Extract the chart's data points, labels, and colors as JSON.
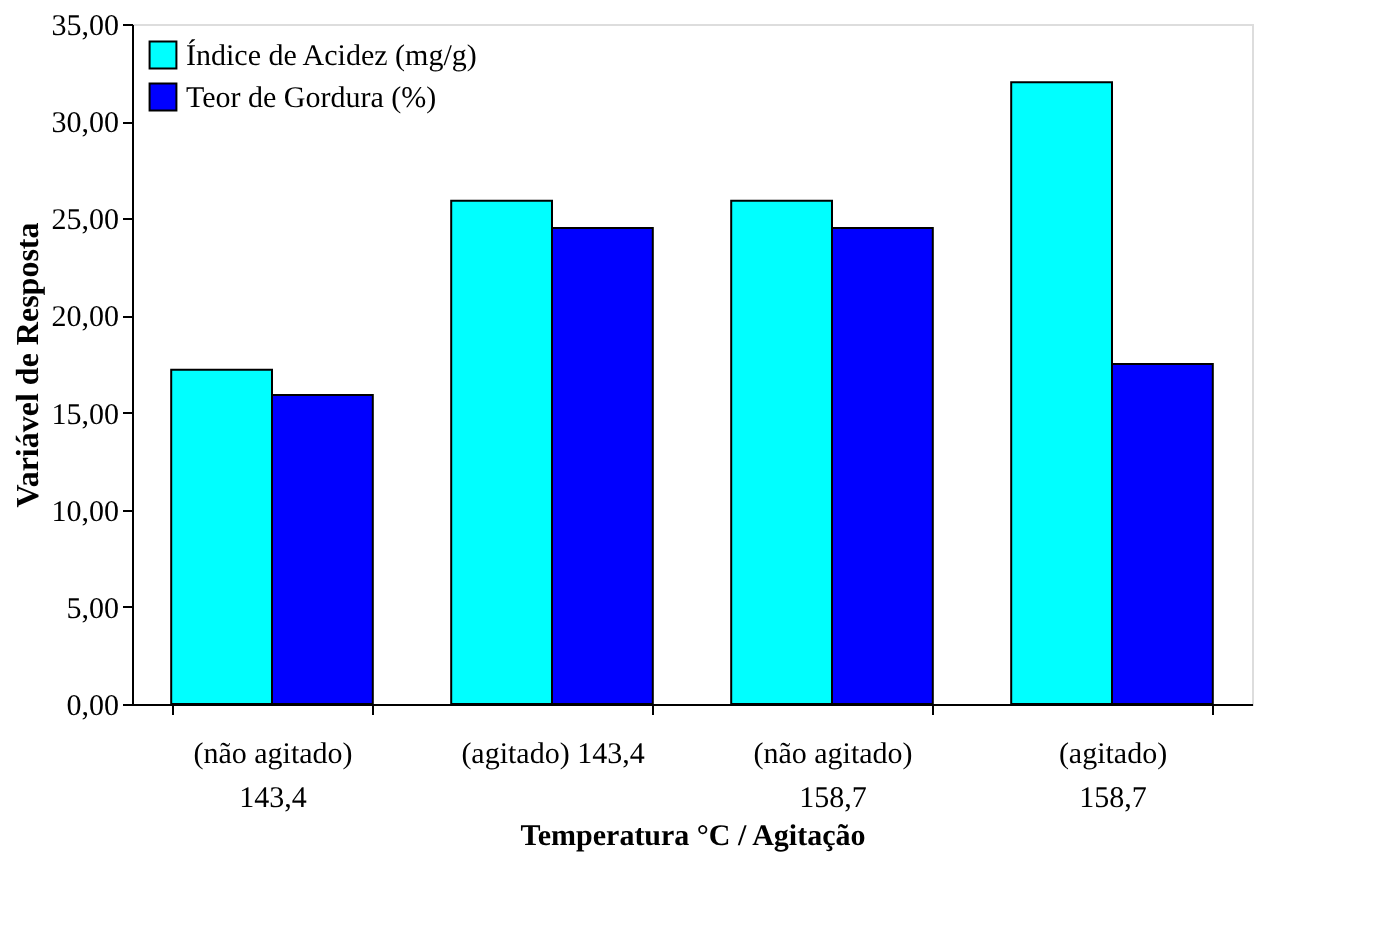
{
  "chart_data": {
    "type": "bar",
    "xlabel": "Temperatura °C / Agitação",
    "ylabel": "Variável de Resposta",
    "categories": [
      "(não agitado)\n143,4",
      "(agitado)  143,4",
      "(não agitado)\n158,7",
      "(agitado)\n158,7"
    ],
    "series": [
      {
        "name": "Índice de Acidez (mg/g)",
        "color": "#00ffff",
        "values": [
          17.2,
          25.9,
          25.9,
          32.0
        ]
      },
      {
        "name": "Teor de Gordura (%)",
        "color": "#0000ff",
        "values": [
          15.9,
          24.5,
          24.5,
          17.5
        ]
      }
    ],
    "ylim": [
      0,
      35
    ],
    "yticks": [
      {
        "value": 0,
        "label": "0,00"
      },
      {
        "value": 5,
        "label": "5,00"
      },
      {
        "value": 10,
        "label": "10,00"
      },
      {
        "value": 15,
        "label": "15,00"
      },
      {
        "value": 20,
        "label": "20,00"
      },
      {
        "value": 25,
        "label": "25,00"
      },
      {
        "value": 30,
        "label": "30,00"
      },
      {
        "value": 35,
        "label": "35,00"
      }
    ],
    "grid": false,
    "legend": "top left"
  }
}
